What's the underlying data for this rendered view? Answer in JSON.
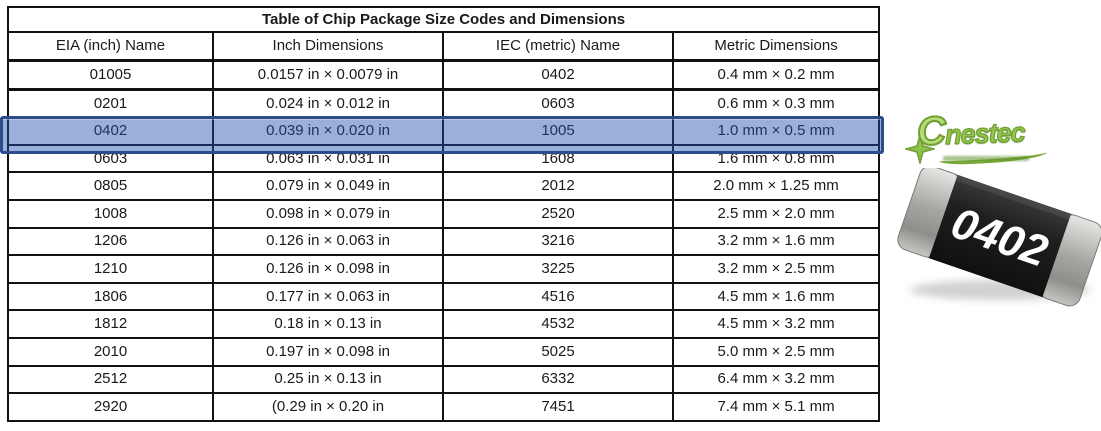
{
  "table": {
    "title": "Table of Chip Package Size Codes and Dimensions",
    "headers": [
      "EIA (inch) Name",
      "Inch Dimensions",
      "IEC (metric) Name",
      "Metric Dimensions"
    ],
    "rows": [
      [
        "01005",
        "0.0157 in × 0.0079 in",
        "0402",
        "0.4 mm × 0.2 mm"
      ],
      [
        "0201",
        "0.024 in × 0.012 in",
        "0603",
        "0.6 mm × 0.3 mm"
      ],
      [
        "0402",
        "0.039 in × 0.020 in",
        "1005",
        "1.0 mm × 0.5 mm"
      ],
      [
        "0603",
        "0.063 in × 0.031 in",
        "1608",
        "1.6 mm × 0.8 mm"
      ],
      [
        "0805",
        "0.079 in × 0.049 in",
        "2012",
        "2.0 mm × 1.25 mm"
      ],
      [
        "1008",
        "0.098 in × 0.079 in",
        "2520",
        "2.5 mm × 2.0 mm"
      ],
      [
        "1206",
        "0.126 in × 0.063 in",
        "3216",
        "3.2 mm × 1.6 mm"
      ],
      [
        "1210",
        "0.126 in × 0.098 in",
        "3225",
        "3.2 mm × 2.5 mm"
      ],
      [
        "1806",
        "0.177 in × 0.063 in",
        "4516",
        "4.5 mm × 1.6 mm"
      ],
      [
        "1812",
        "0.18 in × 0.13 in",
        "4532",
        "4.5 mm × 3.2 mm"
      ],
      [
        "2010",
        "0.197 in × 0.098 in",
        "5025",
        "5.0 mm × 2.5 mm"
      ],
      [
        "2512",
        "0.25 in × 0.13 in",
        "6332",
        "6.4 mm × 3.2 mm"
      ],
      [
        "2920",
        "(0.29 in × 0.20 in",
        "7451",
        "7.4 mm × 5.1 mm"
      ]
    ],
    "highlighted_row_index": 2,
    "highlight_fill": "rgba(30,80,175,0.45)",
    "highlight_border_color": "#2C4C8A"
  },
  "logo": {
    "initial": "C",
    "rest": "nestec",
    "color": "#93c64d"
  },
  "chip": {
    "label": "0402",
    "body_color": "#1c1c1c",
    "cap_color": "#b8b8b8"
  }
}
